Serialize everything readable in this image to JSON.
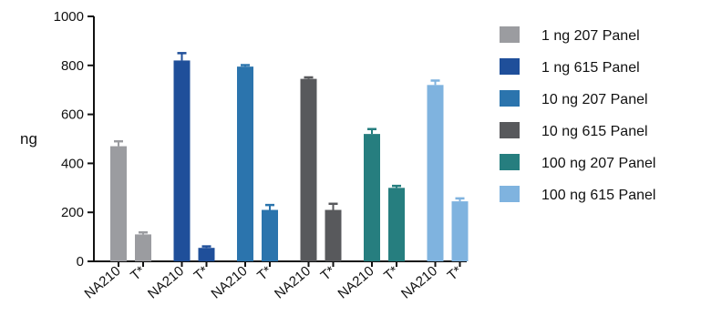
{
  "chart_data": {
    "type": "bar",
    "ylabel": "ng",
    "ylim": [
      0,
      1000
    ],
    "yticks": [
      0,
      200,
      400,
      600,
      800,
      1000
    ],
    "legend_position": "right",
    "groups": [
      {
        "series": "1 ng 207 Panel",
        "color": "#9b9ca0",
        "bars": [
          {
            "category": "NA210",
            "value": 470,
            "error": 20
          },
          {
            "category": "T*",
            "value": 110,
            "error": 8
          }
        ]
      },
      {
        "series": "1 ng 615 Panel",
        "color": "#1f4f9a",
        "bars": [
          {
            "category": "NA210",
            "value": 820,
            "error": 30
          },
          {
            "category": "T*",
            "value": 55,
            "error": 6
          }
        ]
      },
      {
        "series": "10 ng 207 Panel",
        "color": "#2b74ad",
        "bars": [
          {
            "category": "NA210",
            "value": 795,
            "error": 6
          },
          {
            "category": "T*",
            "value": 210,
            "error": 20
          }
        ]
      },
      {
        "series": "10 ng 615 Panel",
        "color": "#58595c",
        "bars": [
          {
            "category": "NA210",
            "value": 745,
            "error": 6
          },
          {
            "category": "T*",
            "value": 210,
            "error": 25
          }
        ]
      },
      {
        "series": "100 ng 207 Panel",
        "color": "#267e7f",
        "bars": [
          {
            "category": "NA210",
            "value": 520,
            "error": 20
          },
          {
            "category": "T*",
            "value": 300,
            "error": 8
          }
        ]
      },
      {
        "series": "100 ng 615 Panel",
        "color": "#7fb3df",
        "bars": [
          {
            "category": "NA210",
            "value": 720,
            "error": 18
          },
          {
            "category": "T*",
            "value": 245,
            "error": 12
          }
        ]
      }
    ]
  }
}
